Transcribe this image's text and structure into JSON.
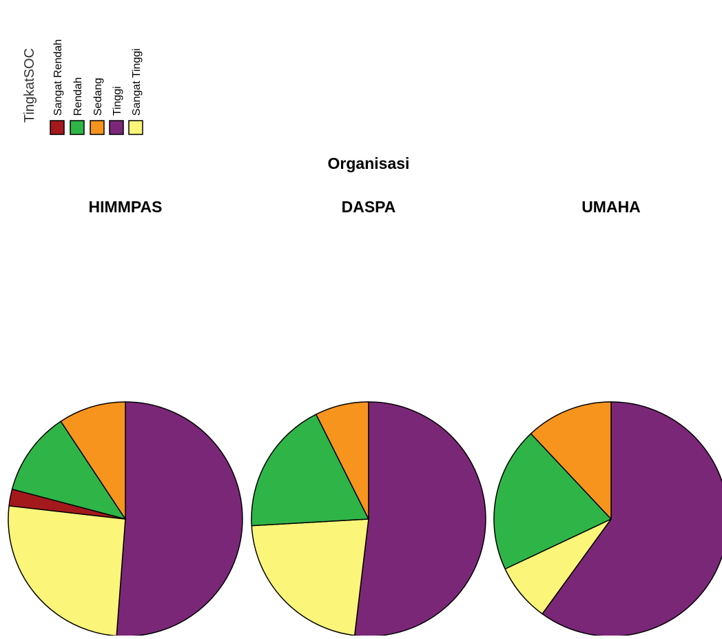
{
  "chart_data": {
    "type": "pie",
    "legend": {
      "title": "TingkatSOC",
      "placement": "top-left",
      "orientation": "vertical-rotated",
      "entries": [
        {
          "label": "Sangat Rendah",
          "color": "#a4191c"
        },
        {
          "label": "Rendah",
          "color": "#2fb547"
        },
        {
          "label": "Sedang",
          "color": "#f7941d"
        },
        {
          "label": "Tinggi",
          "color": "#7b2778"
        },
        {
          "label": "Sangat Tinggi",
          "color": "#fbf57a"
        }
      ]
    },
    "panel_group_title": "Organisasi",
    "panels": [
      {
        "title": "HIMMPAS",
        "slices": [
          {
            "category": "Tinggi",
            "percent": 51.2
          },
          {
            "category": "Sangat Tinggi",
            "percent": 25.6
          },
          {
            "category": "Sangat Rendah",
            "percent": 2.3
          },
          {
            "category": "Rendah",
            "percent": 11.6
          },
          {
            "category": "Sedang",
            "percent": 9.3
          }
        ]
      },
      {
        "title": "DASPA",
        "slices": [
          {
            "category": "Tinggi",
            "percent": 51.9
          },
          {
            "category": "Sangat Tinggi",
            "percent": 22.2
          },
          {
            "category": "Rendah",
            "percent": 18.5
          },
          {
            "category": "Sedang",
            "percent": 7.4
          }
        ]
      },
      {
        "title": "UMAHA",
        "slices": [
          {
            "category": "Tinggi",
            "percent": 60.0
          },
          {
            "category": "Sangat Tinggi",
            "percent": 8.0
          },
          {
            "category": "Rendah",
            "percent": 20.0
          },
          {
            "category": "Sedang",
            "percent": 12.0
          }
        ]
      }
    ]
  }
}
